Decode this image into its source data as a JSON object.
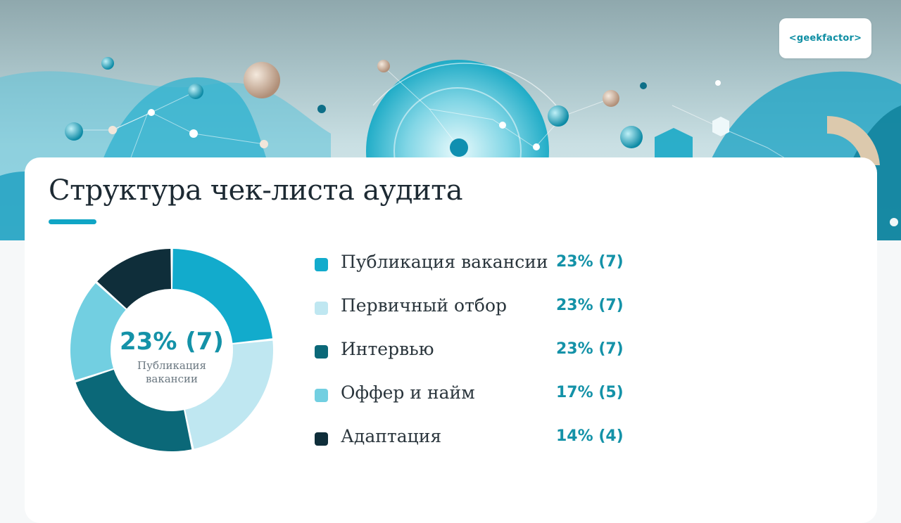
{
  "logo": {
    "text": "<geekfactor>"
  },
  "title": "Структура чек-листа аудита",
  "center": {
    "value": "23% (7)",
    "label": "Публикация вакансии"
  },
  "colors": {
    "accent": "#10a5c5",
    "value_text": "#1492a8"
  },
  "chart_data": {
    "type": "pie",
    "donut": true,
    "categories": [
      "Публикация вакансии",
      "Первичный отбор",
      "Интервью",
      "Оффер и найм",
      "Адаптация"
    ],
    "values": [
      7,
      7,
      7,
      5,
      4
    ],
    "percents": [
      23,
      23,
      23,
      17,
      14
    ],
    "colors": [
      "#12abcc",
      "#bfe7f1",
      "#0b6878",
      "#72cfe1",
      "#0f2e3a"
    ],
    "legend": [
      {
        "label": "Публикация вакансии",
        "value": "23% (7)",
        "color": "#12abcc"
      },
      {
        "label": "Первичный отбор",
        "value": "23% (7)",
        "color": "#bfe7f1"
      },
      {
        "label": "Интервью",
        "value": "23% (7)",
        "color": "#0b6878"
      },
      {
        "label": "Оффер и найм",
        "value": "17% (5)",
        "color": "#72cfe1"
      },
      {
        "label": "Адаптация",
        "value": "14% (4)",
        "color": "#0f2e3a"
      }
    ]
  }
}
